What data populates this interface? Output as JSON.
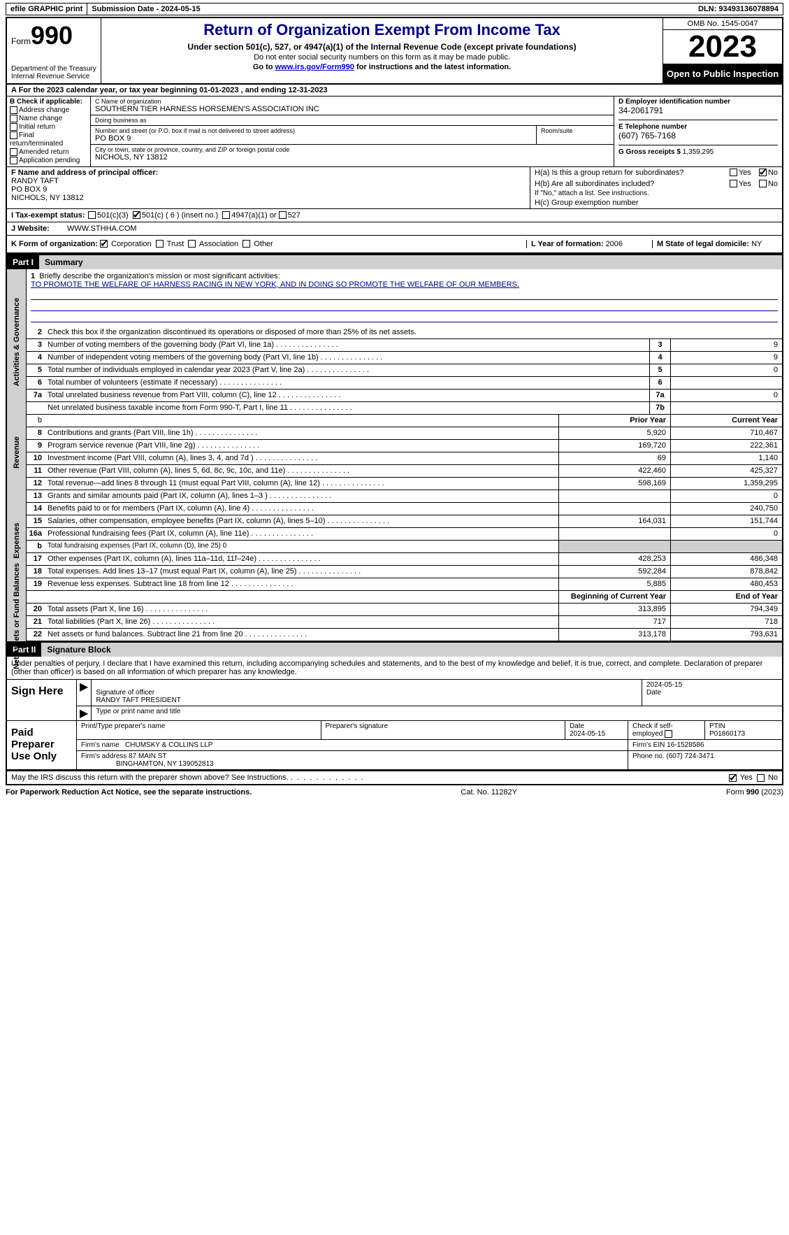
{
  "topbar": {
    "efile": "efile GRAPHIC print",
    "submission": "Submission Date - 2024-05-15",
    "dln": "DLN: 93493136078894"
  },
  "header": {
    "form_prefix": "Form",
    "form_num": "990",
    "dept": "Department of the Treasury",
    "irs": "Internal Revenue Service",
    "title": "Return of Organization Exempt From Income Tax",
    "subtitle": "Under section 501(c), 527, or 4947(a)(1) of the Internal Revenue Code (except private foundations)",
    "ssn_warn": "Do not enter social security numbers on this form as it may be made public.",
    "goto_pre": "Go to ",
    "goto_link": "www.irs.gov/Form990",
    "goto_post": " for instructions and the latest information.",
    "omb": "OMB No. 1545-0047",
    "year": "2023",
    "open": "Open to Public Inspection"
  },
  "line_a": "A For the 2023 calendar year, or tax year beginning 01-01-2023   , and ending 12-31-2023",
  "box_b": {
    "title": "B Check if applicable:",
    "items": [
      "Address change",
      "Name change",
      "Initial return",
      "Final return/terminated",
      "Amended return",
      "Application pending"
    ]
  },
  "box_c": {
    "name_label": "C Name of organization",
    "name": "SOUTHERN TIER HARNESS HORSEMEN'S ASSOCIATION INC",
    "dba_label": "Doing business as",
    "dba": "",
    "addr_label": "Number and street (or P.O. box if mail is not delivered to street address)",
    "addr": "PO BOX 9",
    "room_label": "Room/suite",
    "city_label": "City or town, state or province, country, and ZIP or foreign postal code",
    "city": "NICHOLS, NY  13812"
  },
  "box_d": {
    "ein_label": "D Employer identification number",
    "ein": "34-2061791",
    "tel_label": "E Telephone number",
    "tel": "(607) 765-7168",
    "gross_label": "G Gross receipts $ ",
    "gross": "1,359,295"
  },
  "box_f": {
    "label": "F  Name and address of principal officer:",
    "name": "RANDY TAFT",
    "addr1": "PO BOX 9",
    "addr2": "NICHOLS, NY   13812"
  },
  "box_h": {
    "a_label": "H(a)  Is this a group return for subordinates?",
    "b_label": "H(b)  Are all subordinates included?",
    "b_note": "If \"No,\" attach a list. See instructions.",
    "c_label": "H(c)  Group exemption number",
    "yes": "Yes",
    "no": "No"
  },
  "tax_status": {
    "i_label": "I   Tax-exempt status:",
    "opt1": "501(c)(3)",
    "opt2": "501(c) ( 6 ) (insert no.)",
    "opt3": "4947(a)(1) or",
    "opt4": "527"
  },
  "website": {
    "j_label": "J   Website:",
    "val": "WWW.STHHA.COM"
  },
  "k_org": {
    "label": "K Form of organization:",
    "opts": [
      "Corporation",
      "Trust",
      "Association",
      "Other"
    ]
  },
  "l_year": {
    "label": "L Year of formation: ",
    "val": "2006"
  },
  "m_state": {
    "label": "M State of legal domicile: ",
    "val": "NY"
  },
  "part1": {
    "hdr": "Part I",
    "title": "Summary"
  },
  "mission": {
    "q": "Briefly describe the organization's mission or most significant activities:",
    "text": "TO PROMOTE THE WELFARE OF HARNESS RACING IN NEW YORK, AND IN DOING SO PROMOTE THE WELFARE OF OUR MEMBERS."
  },
  "sides": {
    "gov": "Activities & Governance",
    "rev": "Revenue",
    "exp": "Expenses",
    "net": "Net Assets or Fund Balances"
  },
  "gov_lines": {
    "l2": "Check this box        if the organization discontinued its operations or disposed of more than 25% of its net assets.",
    "l3": "Number of voting members of the governing body (Part VI, line 1a)",
    "l4": "Number of independent voting members of the governing body (Part VI, line 1b)",
    "l5": "Total number of individuals employed in calendar year 2023 (Part V, line 2a)",
    "l6": "Total number of volunteers (estimate if necessary)",
    "l7a": "Total unrelated business revenue from Part VIII, column (C), line 12",
    "l7b": "Net unrelated business taxable income from Form 990-T, Part I, line 11",
    "v3": "9",
    "v4": "9",
    "v5": "0",
    "v6": "",
    "v7a": "0",
    "v7b": ""
  },
  "col_hdrs": {
    "prior": "Prior Year",
    "current": "Current Year",
    "begin": "Beginning of Current Year",
    "end": "End of Year"
  },
  "rev_lines": [
    {
      "n": "8",
      "d": "Contributions and grants (Part VIII, line 1h)",
      "p": "5,920",
      "c": "710,467"
    },
    {
      "n": "9",
      "d": "Program service revenue (Part VIII, line 2g)",
      "p": "169,720",
      "c": "222,361"
    },
    {
      "n": "10",
      "d": "Investment income (Part VIII, column (A), lines 3, 4, and 7d )",
      "p": "69",
      "c": "1,140"
    },
    {
      "n": "11",
      "d": "Other revenue (Part VIII, column (A), lines 5, 6d, 8c, 9c, 10c, and 11e)",
      "p": "422,460",
      "c": "425,327"
    },
    {
      "n": "12",
      "d": "Total revenue—add lines 8 through 11 (must equal Part VIII, column (A), line 12)",
      "p": "598,169",
      "c": "1,359,295"
    }
  ],
  "exp_lines": [
    {
      "n": "13",
      "d": "Grants and similar amounts paid (Part IX, column (A), lines 1–3 )",
      "p": "",
      "c": "0"
    },
    {
      "n": "14",
      "d": "Benefits paid to or for members (Part IX, column (A), line 4)",
      "p": "",
      "c": "240,750"
    },
    {
      "n": "15",
      "d": "Salaries, other compensation, employee benefits (Part IX, column (A), lines 5–10)",
      "p": "164,031",
      "c": "151,744"
    },
    {
      "n": "16a",
      "d": "Professional fundraising fees (Part IX, column (A), line 11e)",
      "p": "",
      "c": "0"
    },
    {
      "n": "b",
      "d": "Total fundraising expenses (Part IX, column (D), line 25) 0",
      "shaded": true
    },
    {
      "n": "17",
      "d": "Other expenses (Part IX, column (A), lines 11a–11d, 11f–24e)",
      "p": "428,253",
      "c": "486,348"
    },
    {
      "n": "18",
      "d": "Total expenses. Add lines 13–17 (must equal Part IX, column (A), line 25)",
      "p": "592,284",
      "c": "878,842"
    },
    {
      "n": "19",
      "d": "Revenue less expenses. Subtract line 18 from line 12",
      "p": "5,885",
      "c": "480,453"
    }
  ],
  "net_lines": [
    {
      "n": "20",
      "d": "Total assets (Part X, line 16)",
      "p": "313,895",
      "c": "794,349"
    },
    {
      "n": "21",
      "d": "Total liabilities (Part X, line 26)",
      "p": "717",
      "c": "718"
    },
    {
      "n": "22",
      "d": "Net assets or fund balances. Subtract line 21 from line 20",
      "p": "313,178",
      "c": "793,631"
    }
  ],
  "part2": {
    "hdr": "Part II",
    "title": "Signature Block"
  },
  "sig_decl": "Under penalties of perjury, I declare that I have examined this return, including accompanying schedules and statements, and to the best of my knowledge and belief, it is true, correct, and complete. Declaration of preparer (other than officer) is based on all information of which preparer has any knowledge.",
  "sign_here": "Sign Here",
  "sig_officer": {
    "sig_label": "Signature of officer",
    "name": "RANDY TAFT PRESIDENT",
    "title_label": "Type or print name and title",
    "date_label": "Date",
    "date": "2024-05-15"
  },
  "paid": {
    "hdr": "Paid Preparer Use Only",
    "name_label": "Print/Type preparer's name",
    "sig_label": "Preparer's signature",
    "date_label": "Date",
    "date": "2024-05-15",
    "check_label": "Check         if self-employed",
    "ptin_label": "PTIN",
    "ptin": "P01860173",
    "firm_name_label": "Firm's name",
    "firm_name": "CHUMSKY & COLLINS LLP",
    "firm_ein_label": "Firm's EIN",
    "firm_ein": "16-1528586",
    "firm_addr_label": "Firm's address",
    "firm_addr": "87 MAIN ST",
    "firm_city": "BINGHAMTON, NY  139052813",
    "phone_label": "Phone no.",
    "phone": "(607) 724-3471"
  },
  "discuss": {
    "q": "May the IRS discuss this return with the preparer shown above? See Instructions.",
    "yes": "Yes",
    "no": "No"
  },
  "footer": {
    "pra": "For Paperwork Reduction Act Notice, see the separate instructions.",
    "cat": "Cat. No. 11282Y",
    "form": "Form 990 (2023)"
  }
}
